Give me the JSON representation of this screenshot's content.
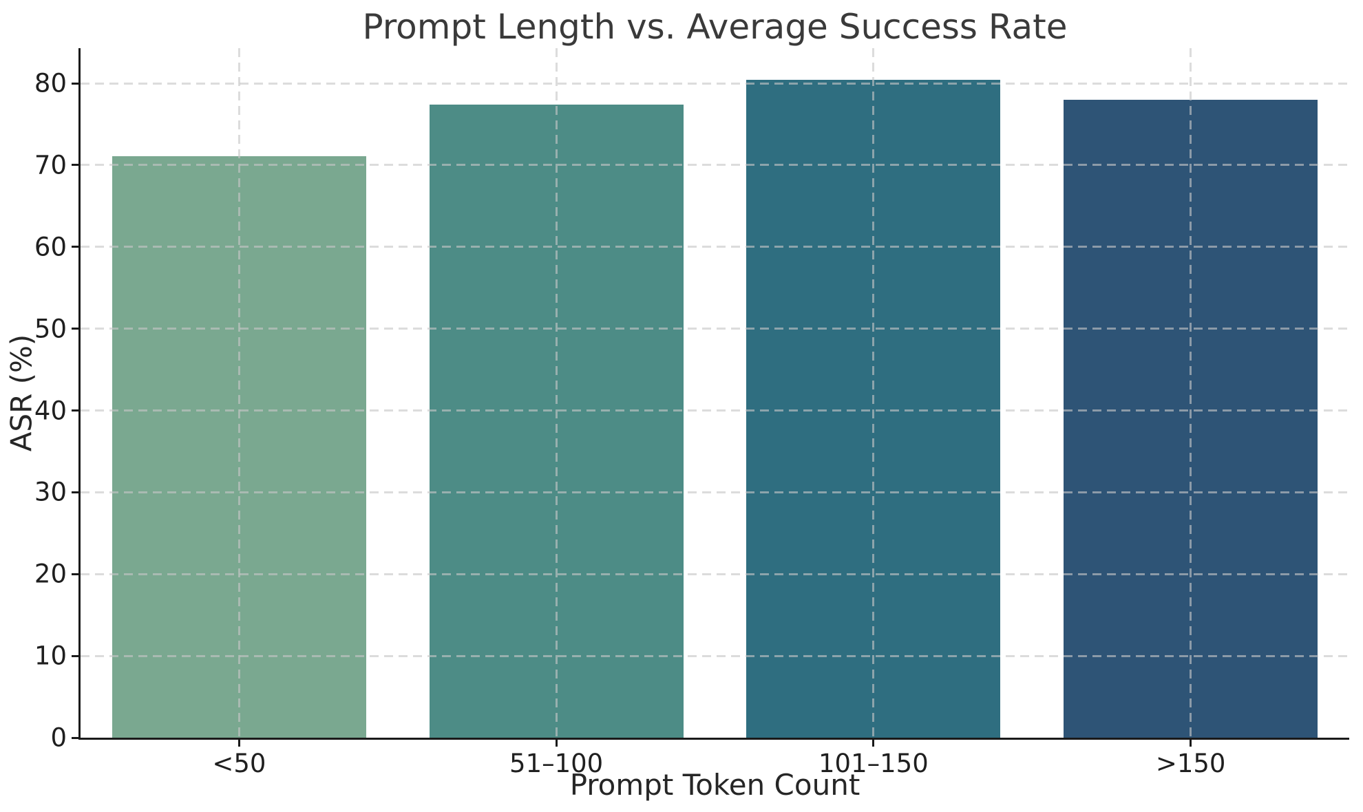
{
  "chart_data": {
    "type": "bar",
    "title": "Prompt Length vs. Average Success Rate",
    "xlabel": "Prompt Token Count",
    "ylabel": "ASR (%)",
    "categories": [
      "<50",
      "51–100",
      "101–150",
      ">150"
    ],
    "values": [
      71.1,
      77.4,
      80.4,
      78.0
    ],
    "bar_colors": [
      "#7aa890",
      "#4d8c86",
      "#2f6e80",
      "#2e5476"
    ],
    "ylim": [
      0,
      84.3
    ],
    "yticks": [
      0,
      10,
      20,
      30,
      40,
      50,
      60,
      70,
      80
    ],
    "grid": "dashed horizontal and vertical gridlines, drawn over bars",
    "legend": "none",
    "spine_color": "#1a1a1a",
    "text_color": "#262626",
    "background_color": "#ffffff"
  }
}
